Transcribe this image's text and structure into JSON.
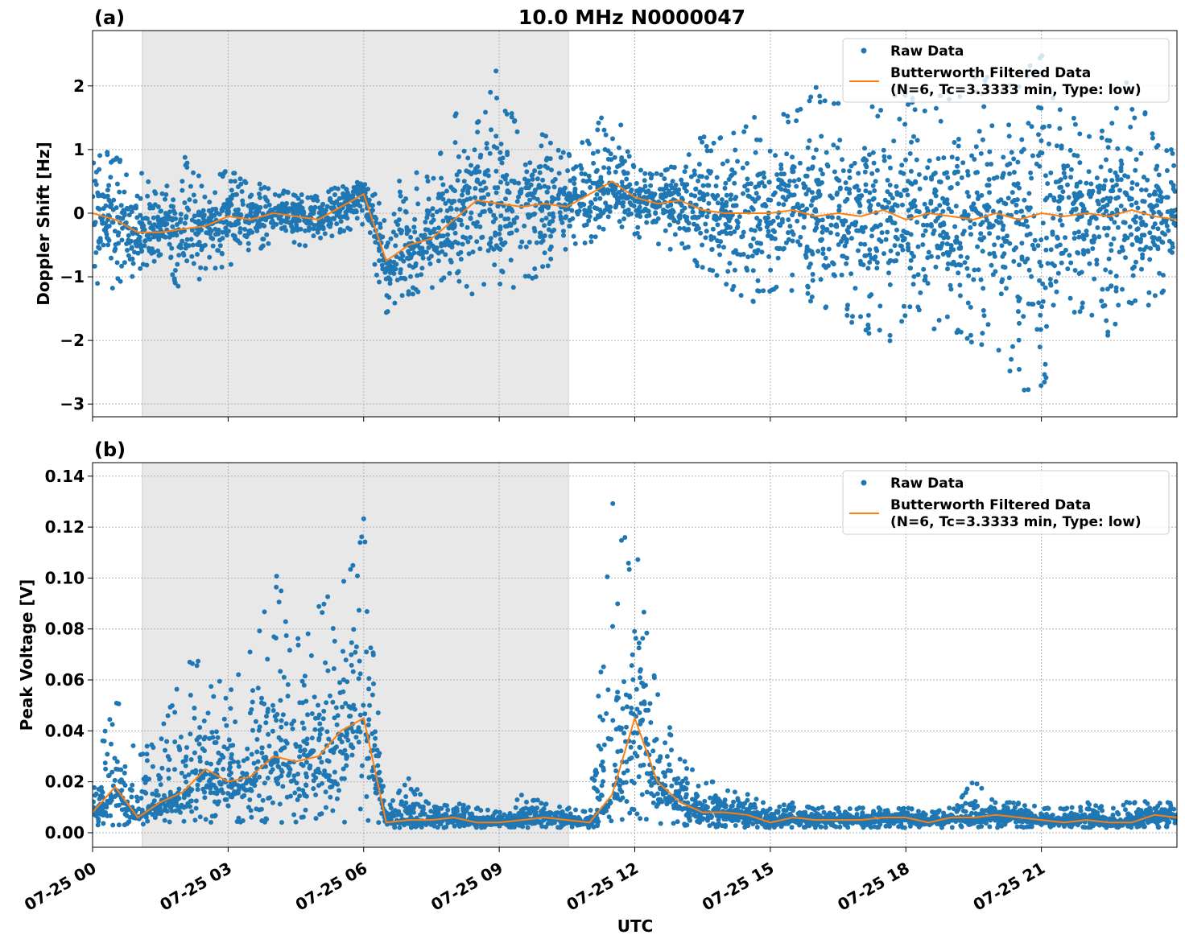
{
  "title": "10.0 MHz N0000047",
  "xlabel": "UTC",
  "colors": {
    "raw": "#1f77b4",
    "filtered": "#ff7f0e",
    "shade": "#e8e8e8"
  },
  "chart_data": [
    {
      "type": "scatter",
      "panel_label": "(a)",
      "ylabel": "Doppler Shift [Hz]",
      "xlim": [
        "07-25 00:00",
        "07-26 00:00"
      ],
      "ylim": [
        -3.2,
        2.87
      ],
      "x_ticks": [
        "07-25 00",
        "07-25 03",
        "07-25 06",
        "07-25 09",
        "07-25 12",
        "07-25 15",
        "07-25 18",
        "07-25 21"
      ],
      "y_ticks": [
        -3,
        -2,
        -1,
        0,
        1,
        2
      ],
      "y_tick_labels": [
        "−3",
        "−2",
        "−1",
        "0",
        "1",
        "2"
      ],
      "grid": true,
      "shaded_interval": [
        "07-25 01:06",
        "07-25 10:32"
      ],
      "legend": {
        "placement": "upper right",
        "entries": [
          "Raw Data",
          "Butterworth Filtered Data",
          "(N=6, Tc=3.3333 min, Type: low)"
        ]
      },
      "time": [
        "00:00",
        "00:30",
        "01:00",
        "01:30",
        "02:00",
        "02:30",
        "03:00",
        "03:30",
        "04:00",
        "04:30",
        "05:00",
        "05:30",
        "06:00",
        "06:30",
        "07:00",
        "07:30",
        "08:00",
        "08:30",
        "09:00",
        "09:30",
        "10:00",
        "10:30",
        "11:00",
        "11:30",
        "12:00",
        "12:30",
        "13:00",
        "13:30",
        "14:00",
        "14:30",
        "15:00",
        "15:30",
        "16:00",
        "16:30",
        "17:00",
        "17:30",
        "18:00",
        "18:30",
        "19:00",
        "19:30",
        "20:00",
        "20:30",
        "21:00",
        "21:30",
        "22:00",
        "22:30",
        "23:00",
        "23:30",
        "24:00"
      ],
      "series": [
        {
          "name": "Butterworth Filtered Data",
          "values": [
            0.0,
            -0.1,
            -0.3,
            -0.3,
            -0.25,
            -0.2,
            -0.05,
            -0.1,
            0.0,
            -0.05,
            -0.1,
            0.1,
            0.3,
            -0.75,
            -0.5,
            -0.4,
            -0.1,
            0.2,
            0.15,
            0.1,
            0.15,
            0.1,
            0.3,
            0.5,
            0.25,
            0.15,
            0.2,
            0.05,
            0.0,
            0.0,
            0.0,
            0.05,
            -0.05,
            0.0,
            -0.05,
            0.05,
            -0.1,
            0.0,
            -0.05,
            -0.1,
            0.0,
            -0.1,
            0.0,
            -0.05,
            0.0,
            -0.05,
            0.05,
            -0.05,
            -0.1
          ]
        },
        {
          "name": "Raw Data",
          "upper": [
            1.1,
            0.9,
            0.7,
            0.3,
            0.95,
            0.5,
            0.75,
            0.5,
            0.4,
            0.3,
            0.3,
            0.45,
            0.5,
            0.1,
            0.85,
            0.6,
            1.6,
            1.4,
            2.5,
            1.1,
            1.3,
            1.0,
            1.2,
            1.9,
            0.7,
            0.65,
            0.8,
            1.3,
            1.2,
            1.5,
            1.7,
            1.6,
            2.0,
            1.8,
            1.6,
            1.8,
            1.9,
            1.8,
            2.0,
            2.2,
            2.1,
            2.3,
            2.6,
            1.6,
            1.4,
            1.3,
            2.4,
            1.3,
            0.9
          ],
          "lower": [
            -1.1,
            -1.2,
            -1.0,
            -0.7,
            -1.4,
            -0.9,
            -0.85,
            -0.6,
            -0.5,
            -0.5,
            -0.6,
            -0.3,
            -0.2,
            -1.6,
            -1.3,
            -1.2,
            -1.0,
            -1.35,
            -1.3,
            -1.2,
            -0.9,
            -0.6,
            -0.5,
            -0.2,
            -0.4,
            -0.5,
            -0.7,
            -0.9,
            -1.1,
            -1.5,
            -1.3,
            -1.4,
            -1.5,
            -1.6,
            -1.8,
            -2.2,
            -1.6,
            -1.8,
            -1.9,
            -2.1,
            -2.2,
            -2.9,
            -2.9,
            -1.9,
            -1.6,
            -2.0,
            -1.6,
            -1.4,
            -1.1
          ]
        }
      ]
    },
    {
      "type": "scatter",
      "panel_label": "(b)",
      "ylabel": "Peak Voltage [V]",
      "xlim": [
        "07-25 00:00",
        "07-26 00:00"
      ],
      "ylim": [
        -0.0057,
        0.1453
      ],
      "x_ticks": [
        "07-25 00",
        "07-25 03",
        "07-25 06",
        "07-25 09",
        "07-25 12",
        "07-25 15",
        "07-25 18",
        "07-25 21"
      ],
      "y_ticks": [
        0,
        0.02,
        0.04,
        0.06,
        0.08,
        0.1,
        0.12,
        0.14
      ],
      "y_tick_labels": [
        "0.00",
        "0.02",
        "0.04",
        "0.06",
        "0.08",
        "0.10",
        "0.12",
        "0.14"
      ],
      "grid": true,
      "shaded_interval": [
        "07-25 01:06",
        "07-25 10:32"
      ],
      "legend": {
        "placement": "upper right",
        "entries": [
          "Raw Data",
          "Butterworth Filtered Data",
          "(N=6, Tc=3.3333 min, Type: low)"
        ]
      },
      "time": [
        "00:00",
        "00:30",
        "01:00",
        "01:30",
        "02:00",
        "02:30",
        "03:00",
        "03:30",
        "04:00",
        "04:30",
        "05:00",
        "05:30",
        "06:00",
        "06:30",
        "07:00",
        "07:30",
        "08:00",
        "08:30",
        "09:00",
        "09:30",
        "10:00",
        "10:30",
        "11:00",
        "11:30",
        "12:00",
        "12:30",
        "13:00",
        "13:30",
        "14:00",
        "14:30",
        "15:00",
        "15:30",
        "16:00",
        "16:30",
        "17:00",
        "17:30",
        "18:00",
        "18:30",
        "19:00",
        "19:30",
        "20:00",
        "20:30",
        "21:00",
        "21:30",
        "22:00",
        "22:30",
        "23:00",
        "23:30",
        "24:00"
      ],
      "series": [
        {
          "name": "Butterworth Filtered Data",
          "values": [
            0.008,
            0.018,
            0.006,
            0.012,
            0.016,
            0.025,
            0.02,
            0.022,
            0.03,
            0.028,
            0.03,
            0.04,
            0.045,
            0.004,
            0.005,
            0.005,
            0.006,
            0.004,
            0.004,
            0.005,
            0.006,
            0.005,
            0.004,
            0.015,
            0.045,
            0.02,
            0.012,
            0.008,
            0.008,
            0.007,
            0.004,
            0.006,
            0.005,
            0.005,
            0.005,
            0.006,
            0.006,
            0.004,
            0.006,
            0.006,
            0.007,
            0.006,
            0.005,
            0.004,
            0.005,
            0.004,
            0.004,
            0.007,
            0.006
          ]
        },
        {
          "name": "Raw Data",
          "upper": [
            0.02,
            0.057,
            0.03,
            0.04,
            0.066,
            0.07,
            0.055,
            0.074,
            0.106,
            0.075,
            0.093,
            0.1,
            0.125,
            0.01,
            0.022,
            0.01,
            0.012,
            0.01,
            0.008,
            0.015,
            0.012,
            0.01,
            0.008,
            0.138,
            0.118,
            0.058,
            0.03,
            0.022,
            0.018,
            0.016,
            0.01,
            0.012,
            0.01,
            0.01,
            0.01,
            0.01,
            0.01,
            0.008,
            0.01,
            0.021,
            0.012,
            0.012,
            0.01,
            0.01,
            0.012,
            0.01,
            0.013,
            0.012,
            0.012
          ],
          "lower": [
            0.003,
            0.003,
            0.003,
            0.004,
            0.004,
            0.004,
            0.004,
            0.004,
            0.004,
            0.004,
            0.004,
            0.004,
            0.004,
            0.002,
            0.002,
            0.002,
            0.002,
            0.002,
            0.002,
            0.002,
            0.002,
            0.002,
            0.002,
            0.003,
            0.004,
            0.003,
            0.003,
            0.002,
            0.002,
            0.002,
            0.002,
            0.002,
            0.002,
            0.002,
            0.002,
            0.002,
            0.002,
            0.002,
            0.002,
            0.002,
            0.002,
            0.002,
            0.002,
            0.002,
            0.002,
            0.002,
            0.002,
            0.002,
            0.002
          ]
        }
      ]
    }
  ]
}
